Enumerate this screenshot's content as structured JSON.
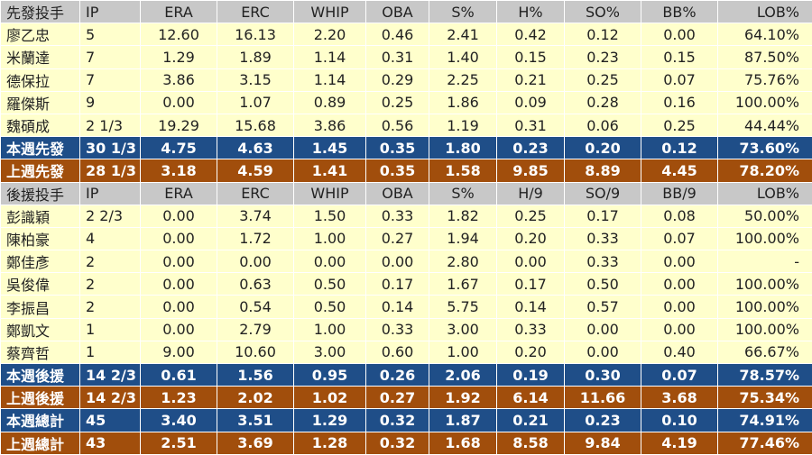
{
  "table": {
    "rows": [
      [
        "先發投手",
        "IP",
        "ERA",
        "ERC",
        "WHIP",
        "OBA",
        "S%",
        "H%",
        "SO%",
        "BB%",
        "LOB%"
      ],
      [
        "廖乙忠",
        "5",
        "12.60",
        "16.13",
        "2.20",
        "0.46",
        "2.41",
        "0.42",
        "0.12",
        "0.00",
        "64.10%"
      ],
      [
        "米蘭達",
        "7",
        "1.29",
        "1.89",
        "1.14",
        "0.31",
        "1.40",
        "0.15",
        "0.23",
        "0.15",
        "87.50%"
      ],
      [
        "德保拉",
        "7",
        "3.86",
        "3.15",
        "1.14",
        "0.29",
        "2.25",
        "0.21",
        "0.25",
        "0.07",
        "75.76%"
      ],
      [
        "羅傑斯",
        "9",
        "0.00",
        "1.07",
        "0.89",
        "0.25",
        "1.86",
        "0.09",
        "0.28",
        "0.16",
        "100.00%"
      ],
      [
        "魏碩成",
        "2 1/3",
        "19.29",
        "15.68",
        "3.86",
        "0.56",
        "1.19",
        "0.31",
        "0.06",
        "0.25",
        "44.44%"
      ],
      [
        "本週先發",
        "30 1/3",
        "4.75",
        "4.63",
        "1.45",
        "0.35",
        "1.80",
        "0.23",
        "0.20",
        "0.12",
        "73.60%"
      ],
      [
        "上週先發",
        "28 1/3",
        "3.18",
        "4.59",
        "1.41",
        "0.35",
        "1.58",
        "9.85",
        "8.89",
        "4.45",
        "78.20%"
      ],
      [
        "後援投手",
        "IP",
        "ERA",
        "ERC",
        "WHIP",
        "OBA",
        "S%",
        "H/9",
        "SO/9",
        "BB/9",
        "LOB%"
      ],
      [
        "彭識穎",
        "2 2/3",
        "0.00",
        "3.74",
        "1.50",
        "0.33",
        "1.82",
        "0.25",
        "0.17",
        "0.08",
        "50.00%"
      ],
      [
        "陳柏豪",
        "4",
        "0.00",
        "1.72",
        "1.00",
        "0.27",
        "1.94",
        "0.20",
        "0.33",
        "0.07",
        "100.00%"
      ],
      [
        "鄭佳彥",
        "2",
        "0.00",
        "0.00",
        "0.00",
        "0.00",
        "2.80",
        "0.00",
        "0.33",
        "0.00",
        "-"
      ],
      [
        "吳俊偉",
        "2",
        "0.00",
        "0.63",
        "0.50",
        "0.17",
        "1.67",
        "0.17",
        "0.50",
        "0.00",
        "100.00%"
      ],
      [
        "李振昌",
        "2",
        "0.00",
        "0.54",
        "0.50",
        "0.14",
        "5.75",
        "0.14",
        "0.57",
        "0.00",
        "100.00%"
      ],
      [
        "鄭凱文",
        "1",
        "0.00",
        "2.79",
        "1.00",
        "0.33",
        "3.00",
        "0.33",
        "0.00",
        "0.00",
        "100.00%"
      ],
      [
        "蔡齊哲",
        "1",
        "9.00",
        "10.60",
        "3.00",
        "0.60",
        "1.00",
        "0.20",
        "0.00",
        "0.40",
        "66.67%"
      ],
      [
        "本週後援",
        "14 2/3",
        "0.61",
        "1.56",
        "0.95",
        "0.26",
        "2.06",
        "0.19",
        "0.30",
        "0.07",
        "78.57%"
      ],
      [
        "上週後援",
        "14 2/3",
        "1.23",
        "2.02",
        "1.02",
        "0.27",
        "1.92",
        "6.14",
        "11.66",
        "3.68",
        "75.34%"
      ],
      [
        "本週總計",
        "45",
        "3.40",
        "3.51",
        "1.29",
        "0.32",
        "1.87",
        "0.21",
        "0.23",
        "0.10",
        "74.91%"
      ],
      [
        "上週總計",
        "43",
        "2.51",
        "3.69",
        "1.28",
        "0.32",
        "1.68",
        "8.58",
        "9.84",
        "4.19",
        "77.46%"
      ]
    ]
  }
}
